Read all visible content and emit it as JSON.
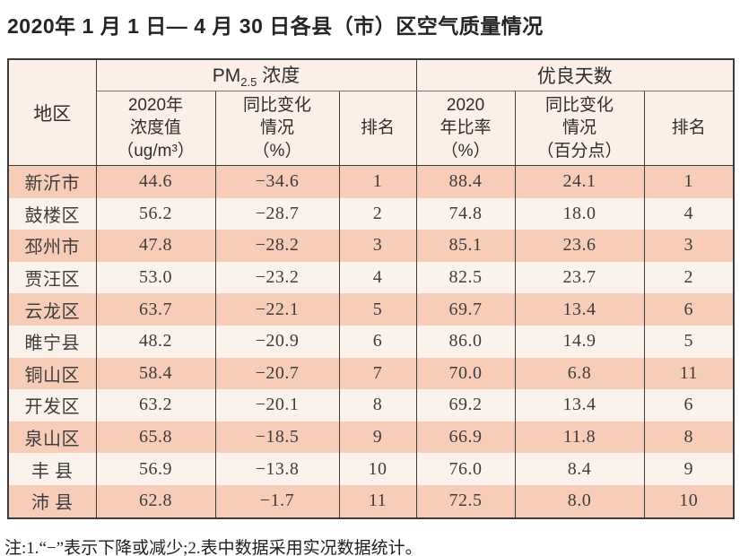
{
  "page": {
    "title": "2020年 1 月 1 日— 4 月 30 日各县（市）区空气质量情况",
    "note": "注:1.“−”表示下降或减少;2.表中数据采用实况数据统计。"
  },
  "colors": {
    "row_salmon": "#f8cdb7",
    "row_light": "#fbf2ec",
    "header_bg": "#fcefe7",
    "border": "#3c3c3c"
  },
  "table": {
    "headers": {
      "region": "地区",
      "pm_group": {
        "prefix": "PM",
        "sub": "2.5",
        "suffix": " 浓度"
      },
      "good_group": "优良天数",
      "pm_value": "2020年\n浓度值\n（ug/m³）",
      "pm_change": "同比变化\n情况\n（%）",
      "pm_rank": "排名",
      "good_ratio": "2020\n年比率\n（%）",
      "good_change": "同比变化\n情况\n（百分点）",
      "good_rank": "排名"
    },
    "row_fields": [
      "region",
      "pm_value",
      "pm_change",
      "pm_rank",
      "good_ratio",
      "good_change",
      "good_rank"
    ],
    "rows": [
      {
        "region": "新沂市",
        "pm_value": "44.6",
        "pm_change": "−34.6",
        "pm_rank": "1",
        "good_ratio": "88.4",
        "good_change": "24.1",
        "good_rank": "1"
      },
      {
        "region": "鼓楼区",
        "pm_value": "56.2",
        "pm_change": "−28.7",
        "pm_rank": "2",
        "good_ratio": "74.8",
        "good_change": "18.0",
        "good_rank": "4"
      },
      {
        "region": "邳州市",
        "pm_value": "47.8",
        "pm_change": "−28.2",
        "pm_rank": "3",
        "good_ratio": "85.1",
        "good_change": "23.6",
        "good_rank": "3"
      },
      {
        "region": "贾汪区",
        "pm_value": "53.0",
        "pm_change": "−23.2",
        "pm_rank": "4",
        "good_ratio": "82.5",
        "good_change": "23.7",
        "good_rank": "2"
      },
      {
        "region": "云龙区",
        "pm_value": "63.7",
        "pm_change": "−22.1",
        "pm_rank": "5",
        "good_ratio": "69.7",
        "good_change": "13.4",
        "good_rank": "6"
      },
      {
        "region": "睢宁县",
        "pm_value": "48.2",
        "pm_change": "−20.9",
        "pm_rank": "6",
        "good_ratio": "86.0",
        "good_change": "14.9",
        "good_rank": "5"
      },
      {
        "region": "铜山区",
        "pm_value": "58.4",
        "pm_change": "−20.7",
        "pm_rank": "7",
        "good_ratio": "70.0",
        "good_change": "6.8",
        "good_rank": "11"
      },
      {
        "region": "开发区",
        "pm_value": "63.2",
        "pm_change": "−20.1",
        "pm_rank": "8",
        "good_ratio": "69.2",
        "good_change": "13.4",
        "good_rank": "6"
      },
      {
        "region": "泉山区",
        "pm_value": "65.8",
        "pm_change": "−18.5",
        "pm_rank": "9",
        "good_ratio": "66.9",
        "good_change": "11.8",
        "good_rank": "8"
      },
      {
        "region": "丰 县",
        "pm_value": "56.9",
        "pm_change": "−13.8",
        "pm_rank": "10",
        "good_ratio": "76.0",
        "good_change": "8.4",
        "good_rank": "9"
      },
      {
        "region": "沛 县",
        "pm_value": "62.8",
        "pm_change": "−1.7",
        "pm_rank": "11",
        "good_ratio": "72.5",
        "good_change": "8.0",
        "good_rank": "10"
      }
    ]
  }
}
